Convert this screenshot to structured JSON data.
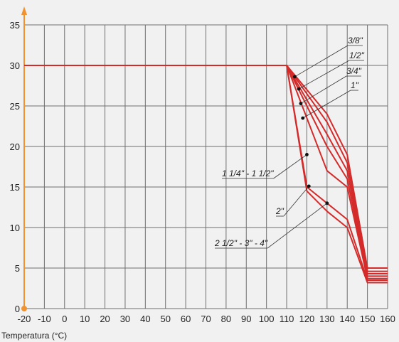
{
  "chart_data": {
    "type": "line",
    "title": "",
    "xlabel": "Temperatura (°C)",
    "ylabel": "",
    "xlim": [
      -20,
      160
    ],
    "ylim": [
      0,
      35
    ],
    "x_ticks": [
      "-20",
      "-10",
      "0",
      "10",
      "20",
      "30",
      "40",
      "50",
      "60",
      "70",
      "80",
      "90",
      "100",
      "110",
      "120",
      "130",
      "140",
      "150",
      "160"
    ],
    "y_ticks": [
      "0",
      "5",
      "10",
      "15",
      "20",
      "25",
      "30",
      "35"
    ],
    "grid": true,
    "line_color": "#d42a2a",
    "series": [
      {
        "name": "3/8\"",
        "points": [
          [
            -20,
            30
          ],
          [
            110,
            30
          ],
          [
            130,
            24
          ],
          [
            140,
            19
          ],
          [
            150,
            5
          ],
          [
            160,
            5
          ]
        ]
      },
      {
        "name": "1/2\"",
        "points": [
          [
            -20,
            30
          ],
          [
            110,
            30
          ],
          [
            130,
            23
          ],
          [
            140,
            18
          ],
          [
            150,
            4.6
          ],
          [
            160,
            4.6
          ]
        ]
      },
      {
        "name": "3/4\"",
        "points": [
          [
            -20,
            30
          ],
          [
            110,
            30
          ],
          [
            130,
            21.5
          ],
          [
            140,
            17
          ],
          [
            150,
            4.3
          ],
          [
            160,
            4.3
          ]
        ]
      },
      {
        "name": "1\"",
        "points": [
          [
            -20,
            30
          ],
          [
            110,
            30
          ],
          [
            130,
            20
          ],
          [
            140,
            16
          ],
          [
            150,
            4
          ],
          [
            160,
            4
          ]
        ]
      },
      {
        "name": "1 1/4\" - 1 1/2\"",
        "points": [
          [
            -20,
            30
          ],
          [
            110,
            30
          ],
          [
            130,
            17
          ],
          [
            140,
            15
          ],
          [
            150,
            3.7
          ],
          [
            160,
            3.7
          ]
        ]
      },
      {
        "name": "2\"",
        "points": [
          [
            -20,
            30
          ],
          [
            110,
            30
          ],
          [
            120,
            15
          ],
          [
            130,
            13
          ],
          [
            140,
            11
          ],
          [
            150,
            3.5
          ],
          [
            160,
            3.5
          ]
        ]
      },
      {
        "name": "2 1/2\" - 3\" - 4\"",
        "points": [
          [
            -20,
            30
          ],
          [
            110,
            30
          ],
          [
            120,
            14.5
          ],
          [
            130,
            12
          ],
          [
            140,
            10
          ],
          [
            150,
            3.2
          ],
          [
            160,
            3.2
          ]
        ]
      }
    ],
    "annotations": [
      {
        "label": "3/8\"",
        "dot": [
          114,
          28.6
        ]
      },
      {
        "label": "1/2\"",
        "dot": [
          116,
          27.1
        ]
      },
      {
        "label": "3/4\"",
        "dot": [
          117,
          25.3
        ]
      },
      {
        "label": "1\"",
        "dot": [
          118,
          23.5
        ]
      },
      {
        "label": "1 1/4\" - 1 1/2\"",
        "dot": [
          120,
          19
        ]
      },
      {
        "label": "2\"",
        "dot": [
          121,
          15.1
        ]
      },
      {
        "label": "2 1/2\" - 3\" - 4\"",
        "dot": [
          130,
          13
        ]
      }
    ]
  }
}
